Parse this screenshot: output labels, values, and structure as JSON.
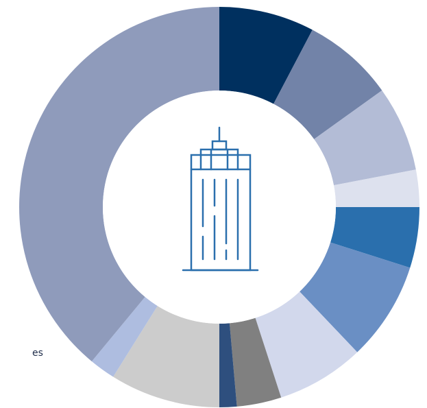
{
  "chart_data": {
    "type": "donut",
    "categories": [
      null,
      null,
      null,
      null,
      null,
      null,
      null,
      null,
      null,
      null,
      null,
      null
    ],
    "values": [
      7.7,
      7.4,
      6.9,
      3.0,
      4.9,
      8.0,
      7.1,
      3.6,
      1.4,
      8.9,
      2.1,
      39.0
    ],
    "colors": [
      "#00305f",
      "#7283a8",
      "#b3bcd6",
      "#dde1ee",
      "#2a6fad",
      "#6a8fc4",
      "#d2d8ec",
      "#808080",
      "#2e4f7e",
      "#cccccc",
      "#aebde0",
      "#8f9bbb"
    ],
    "legend_text": "es"
  }
}
